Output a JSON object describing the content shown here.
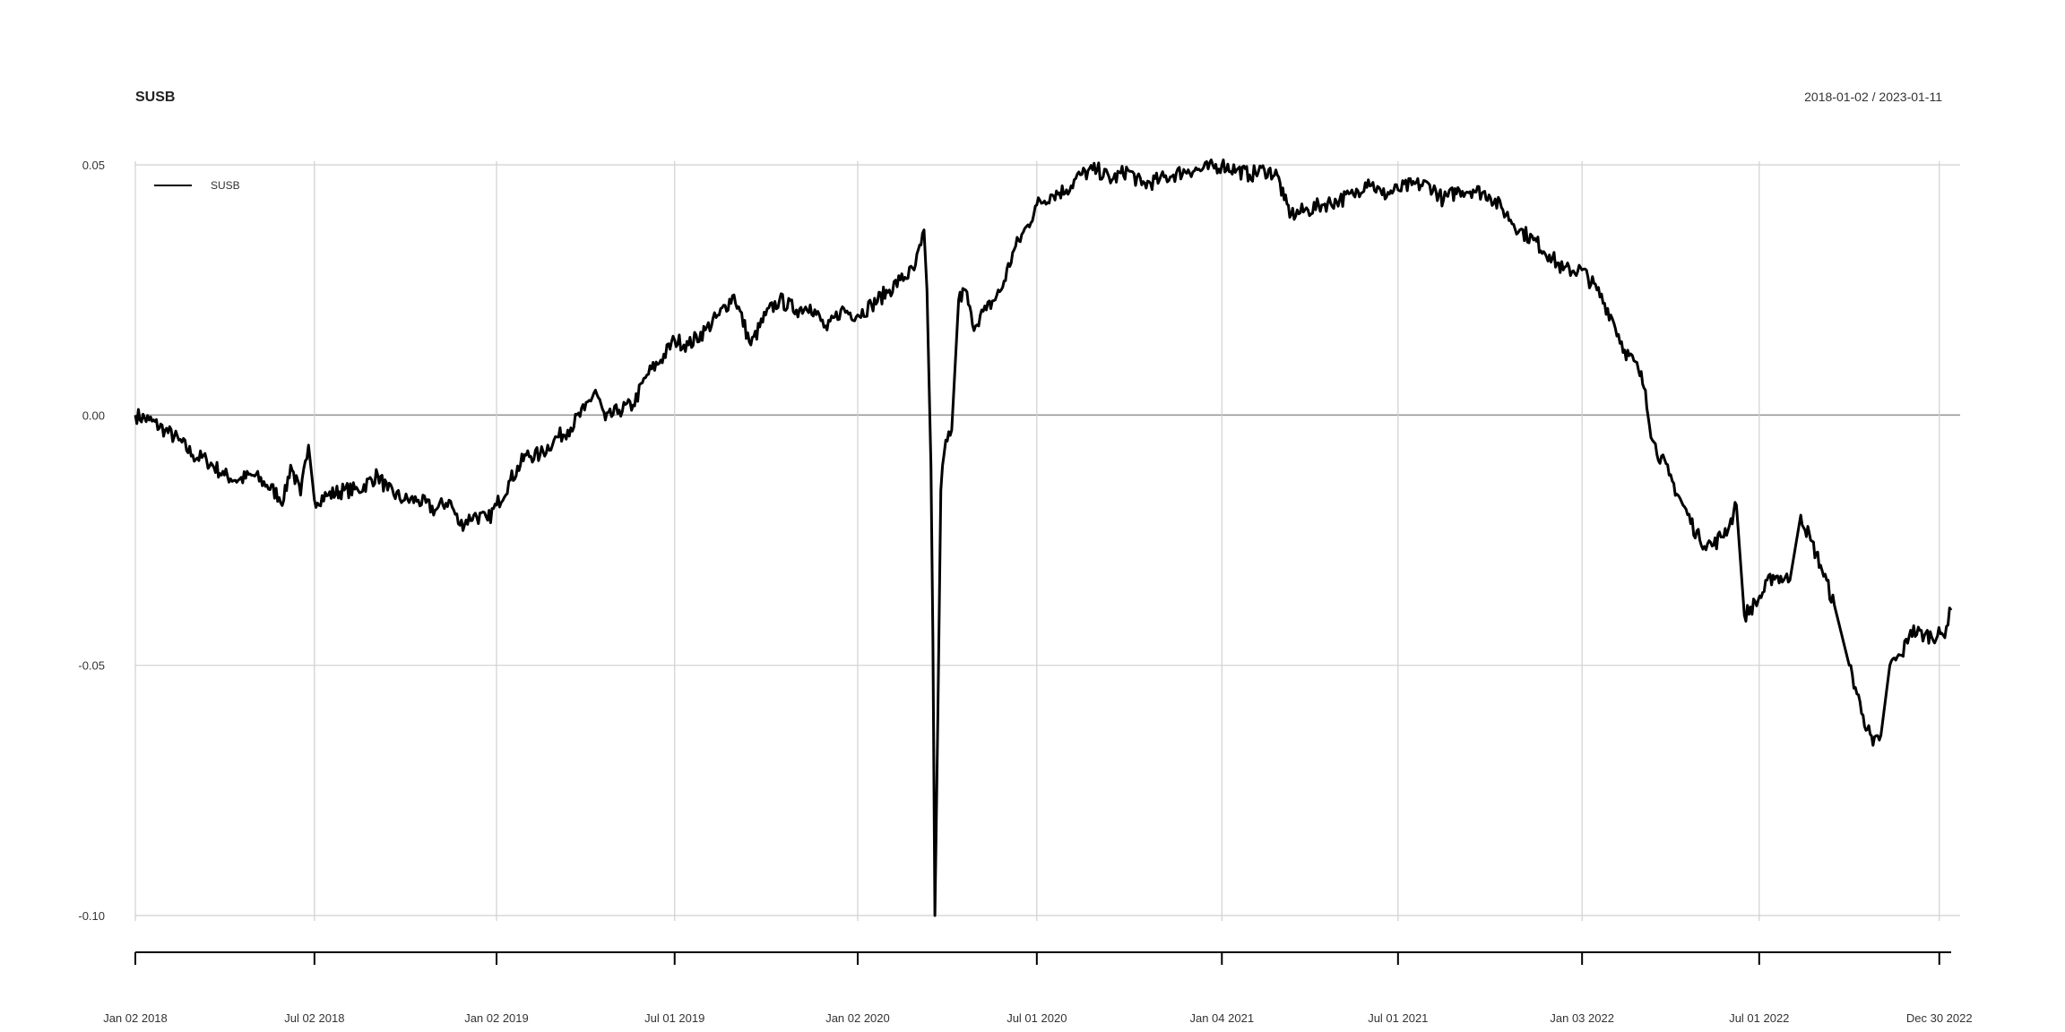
{
  "chart_data": {
    "type": "line",
    "title": "SUSB",
    "date_range": "2018-01-02 / 2023-01-11",
    "legend": {
      "entries": [
        "SUSB"
      ],
      "position": "top-left"
    },
    "grid": true,
    "xlim": [
      "2018-01-02",
      "2023-01-11"
    ],
    "ylim": [
      -0.1,
      0.05
    ],
    "y_ticks": [
      {
        "value": 0.05,
        "label": "0.05"
      },
      {
        "value": 0.0,
        "label": "0.00"
      },
      {
        "value": -0.05,
        "label": "-0.05"
      },
      {
        "value": -0.1,
        "label": "-0.10"
      }
    ],
    "x_ticks": [
      {
        "date": "2018-01-02",
        "label": "Jan 02 2018"
      },
      {
        "date": "2018-07-02",
        "label": "Jul 02 2018"
      },
      {
        "date": "2019-01-02",
        "label": "Jan 02 2019"
      },
      {
        "date": "2019-07-01",
        "label": "Jul 01 2019"
      },
      {
        "date": "2020-01-02",
        "label": "Jan 02 2020"
      },
      {
        "date": "2020-07-01",
        "label": "Jul 01 2020"
      },
      {
        "date": "2021-01-04",
        "label": "Jan 04 2021"
      },
      {
        "date": "2021-07-01",
        "label": "Jul 01 2021"
      },
      {
        "date": "2022-01-03",
        "label": "Jan 03 2022"
      },
      {
        "date": "2022-07-01",
        "label": "Jul 01 2022"
      },
      {
        "date": "2022-12-30",
        "label": "Dec 30 2022"
      }
    ],
    "series": [
      {
        "name": "SUSB",
        "color": "#000000",
        "points": [
          [
            "2018-01-02",
            0.0
          ],
          [
            "2018-01-16",
            -0.001
          ],
          [
            "2018-02-01",
            -0.003
          ],
          [
            "2018-02-15",
            -0.005
          ],
          [
            "2018-03-01",
            -0.008
          ],
          [
            "2018-03-15",
            -0.009
          ],
          [
            "2018-04-02",
            -0.012
          ],
          [
            "2018-04-16",
            -0.013
          ],
          [
            "2018-05-01",
            -0.012
          ],
          [
            "2018-05-15",
            -0.014
          ],
          [
            "2018-06-01",
            -0.017
          ],
          [
            "2018-06-08",
            -0.01
          ],
          [
            "2018-06-18",
            -0.016
          ],
          [
            "2018-06-26",
            -0.006
          ],
          [
            "2018-07-02",
            -0.017
          ],
          [
            "2018-07-16",
            -0.016
          ],
          [
            "2018-08-01",
            -0.015
          ],
          [
            "2018-08-15",
            -0.015
          ],
          [
            "2018-09-04",
            -0.012
          ],
          [
            "2018-09-14",
            -0.015
          ],
          [
            "2018-10-01",
            -0.017
          ],
          [
            "2018-10-15",
            -0.017
          ],
          [
            "2018-11-01",
            -0.019
          ],
          [
            "2018-11-15",
            -0.017
          ],
          [
            "2018-11-26",
            -0.022
          ],
          [
            "2018-12-10",
            -0.02
          ],
          [
            "2018-12-24",
            -0.021
          ],
          [
            "2019-01-02",
            -0.018
          ],
          [
            "2019-01-16",
            -0.013
          ],
          [
            "2019-02-01",
            -0.008
          ],
          [
            "2019-02-15",
            -0.008
          ],
          [
            "2019-03-01",
            -0.005
          ],
          [
            "2019-03-15",
            -0.003
          ],
          [
            "2019-04-01",
            0.001
          ],
          [
            "2019-04-12",
            0.005
          ],
          [
            "2019-04-22",
            -0.001
          ],
          [
            "2019-05-06",
            0.001
          ],
          [
            "2019-05-20",
            0.002
          ],
          [
            "2019-06-03",
            0.008
          ],
          [
            "2019-06-17",
            0.011
          ],
          [
            "2019-07-01",
            0.015
          ],
          [
            "2019-07-15",
            0.014
          ],
          [
            "2019-08-01",
            0.017
          ],
          [
            "2019-08-15",
            0.02
          ],
          [
            "2019-08-30",
            0.024
          ],
          [
            "2019-09-16",
            0.014
          ],
          [
            "2019-10-01",
            0.02
          ],
          [
            "2019-10-15",
            0.023
          ],
          [
            "2019-11-01",
            0.021
          ],
          [
            "2019-11-15",
            0.022
          ],
          [
            "2019-12-02",
            0.017
          ],
          [
            "2019-12-16",
            0.021
          ],
          [
            "2020-01-02",
            0.02
          ],
          [
            "2020-01-16",
            0.022
          ],
          [
            "2020-02-03",
            0.025
          ],
          [
            "2020-02-14",
            0.027
          ],
          [
            "2020-02-28",
            0.029
          ],
          [
            "2020-03-06",
            0.034
          ],
          [
            "2020-03-09",
            0.037
          ],
          [
            "2020-03-12",
            0.025
          ],
          [
            "2020-03-16",
            -0.01
          ],
          [
            "2020-03-18",
            -0.045
          ],
          [
            "2020-03-20",
            -0.1
          ],
          [
            "2020-03-23",
            -0.06
          ],
          [
            "2020-03-26",
            -0.015
          ],
          [
            "2020-03-31",
            -0.005
          ],
          [
            "2020-04-06",
            -0.003
          ],
          [
            "2020-04-13",
            0.023
          ],
          [
            "2020-04-20",
            0.025
          ],
          [
            "2020-04-27",
            0.018
          ],
          [
            "2020-05-11",
            0.021
          ],
          [
            "2020-05-26",
            0.025
          ],
          [
            "2020-06-08",
            0.033
          ],
          [
            "2020-06-22",
            0.038
          ],
          [
            "2020-07-01",
            0.042
          ],
          [
            "2020-07-15",
            0.044
          ],
          [
            "2020-07-31",
            0.045
          ],
          [
            "2020-08-14",
            0.048
          ],
          [
            "2020-08-31",
            0.049
          ],
          [
            "2020-09-15",
            0.047
          ],
          [
            "2020-10-01",
            0.049
          ],
          [
            "2020-10-15",
            0.046
          ],
          [
            "2020-11-02",
            0.047
          ],
          [
            "2020-11-16",
            0.048
          ],
          [
            "2020-12-01",
            0.049
          ],
          [
            "2020-12-15",
            0.049
          ],
          [
            "2021-01-04",
            0.05
          ],
          [
            "2021-01-19",
            0.049
          ],
          [
            "2021-02-01",
            0.048
          ],
          [
            "2021-02-16",
            0.049
          ],
          [
            "2021-03-01",
            0.048
          ],
          [
            "2021-03-08",
            0.043
          ],
          [
            "2021-03-15",
            0.04
          ],
          [
            "2021-04-01",
            0.041
          ],
          [
            "2021-04-15",
            0.042
          ],
          [
            "2021-05-03",
            0.043
          ],
          [
            "2021-05-17",
            0.044
          ],
          [
            "2021-06-01",
            0.047
          ],
          [
            "2021-06-15",
            0.044
          ],
          [
            "2021-07-01",
            0.045
          ],
          [
            "2021-07-15",
            0.046
          ],
          [
            "2021-08-02",
            0.046
          ],
          [
            "2021-08-16",
            0.043
          ],
          [
            "2021-09-01",
            0.045
          ],
          [
            "2021-09-15",
            0.045
          ],
          [
            "2021-10-01",
            0.044
          ],
          [
            "2021-10-15",
            0.041
          ],
          [
            "2021-11-01",
            0.037
          ],
          [
            "2021-11-15",
            0.035
          ],
          [
            "2021-12-01",
            0.032
          ],
          [
            "2021-12-15",
            0.029
          ],
          [
            "2022-01-03",
            0.029
          ],
          [
            "2022-01-18",
            0.025
          ],
          [
            "2022-02-01",
            0.02
          ],
          [
            "2022-02-15",
            0.013
          ],
          [
            "2022-03-01",
            0.009
          ],
          [
            "2022-03-08",
            0.005
          ],
          [
            "2022-03-15",
            -0.005
          ],
          [
            "2022-04-01",
            -0.012
          ],
          [
            "2022-04-15",
            -0.018
          ],
          [
            "2022-05-02",
            -0.025
          ],
          [
            "2022-05-16",
            -0.026
          ],
          [
            "2022-06-01",
            -0.022
          ],
          [
            "2022-06-08",
            -0.018
          ],
          [
            "2022-06-16",
            -0.04
          ],
          [
            "2022-06-30",
            -0.037
          ],
          [
            "2022-07-15",
            -0.032
          ],
          [
            "2022-08-01",
            -0.033
          ],
          [
            "2022-08-12",
            -0.02
          ],
          [
            "2022-08-22",
            -0.025
          ],
          [
            "2022-09-01",
            -0.03
          ],
          [
            "2022-09-15",
            -0.038
          ],
          [
            "2022-09-30",
            -0.05
          ],
          [
            "2022-10-14",
            -0.06
          ],
          [
            "2022-10-24",
            -0.066
          ],
          [
            "2022-11-01",
            -0.064
          ],
          [
            "2022-11-10",
            -0.05
          ],
          [
            "2022-11-22",
            -0.048
          ],
          [
            "2022-12-01",
            -0.043
          ],
          [
            "2022-12-15",
            -0.044
          ],
          [
            "2023-01-03",
            -0.044
          ],
          [
            "2023-01-11",
            -0.039
          ]
        ]
      }
    ]
  }
}
